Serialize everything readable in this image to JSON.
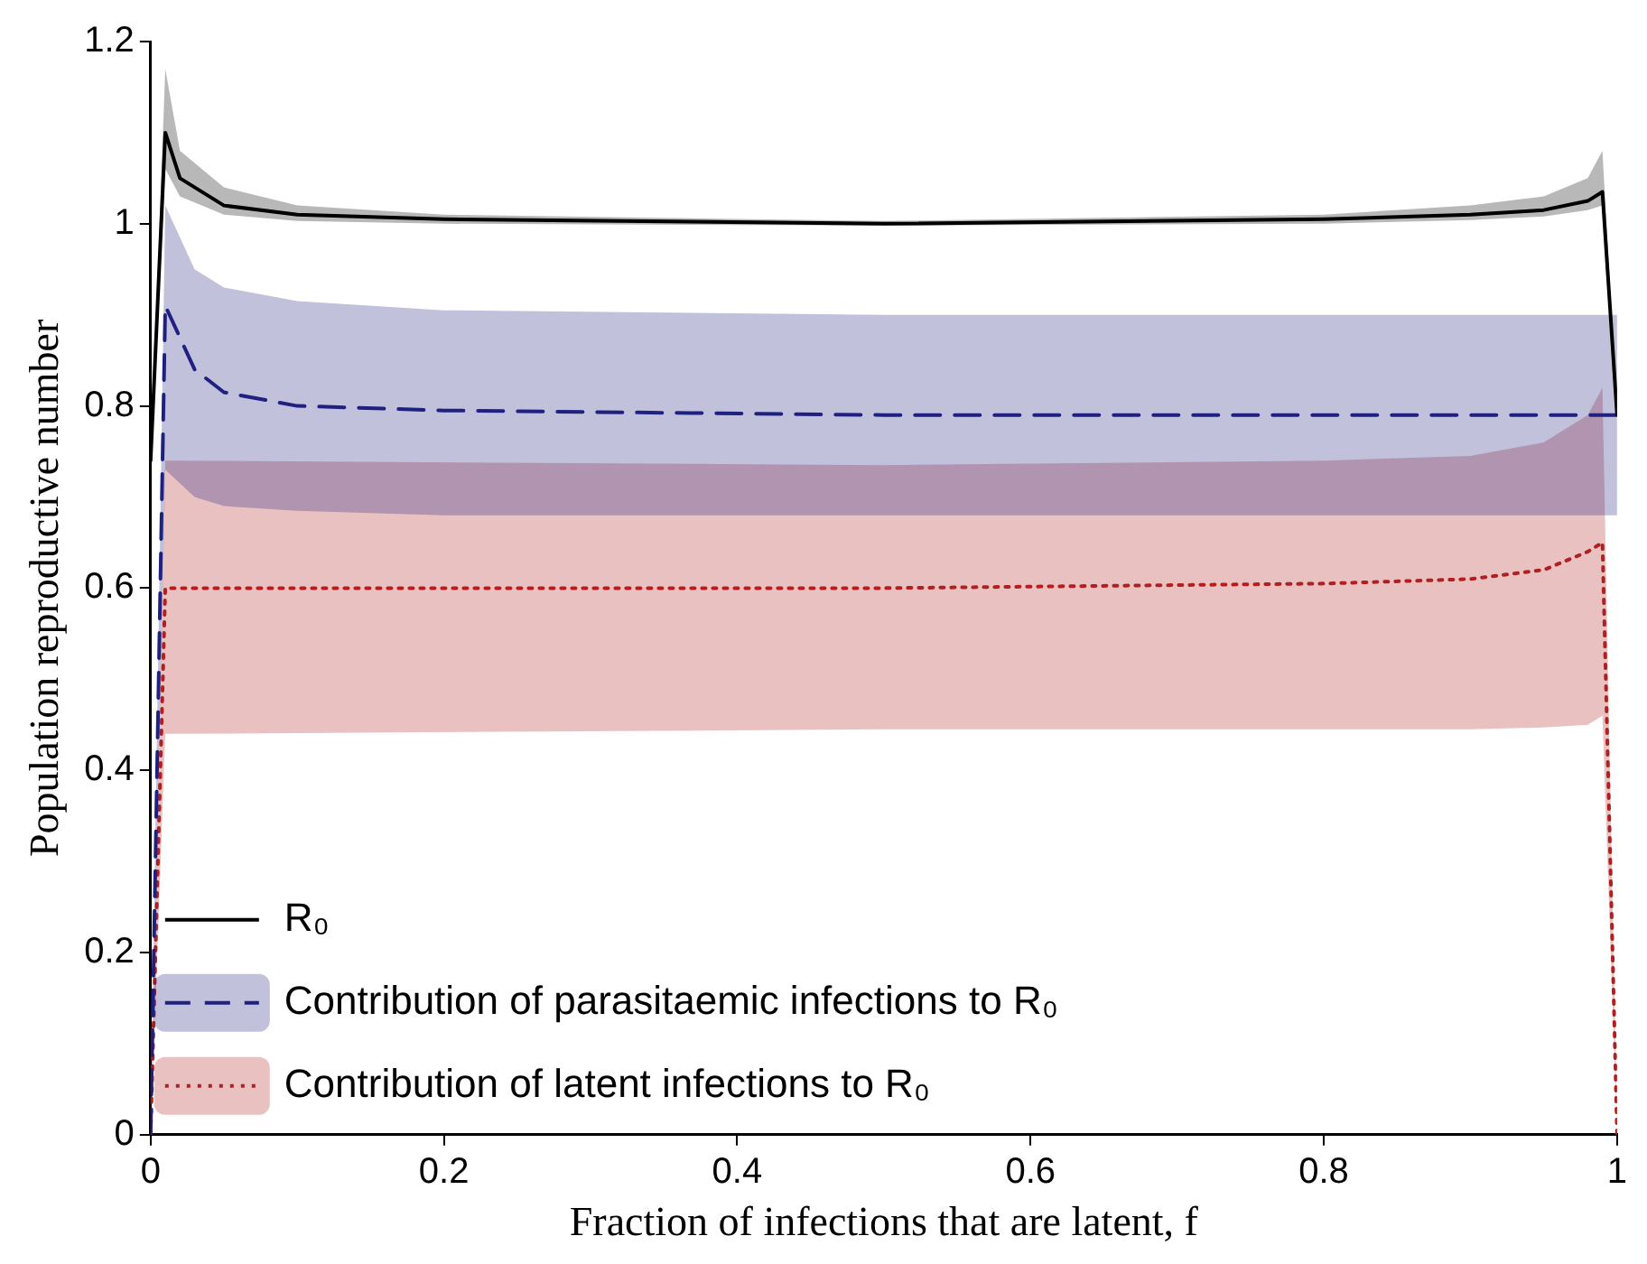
{
  "chart_data": {
    "type": "line",
    "xlabel": "Fraction of infections that are latent, f",
    "ylabel": "Population reproductive number",
    "xlim": [
      0,
      1
    ],
    "ylim": [
      0,
      1.2
    ],
    "xticks": [
      0,
      0.2,
      0.4,
      0.6,
      0.8,
      1
    ],
    "yticks": [
      0,
      0.2,
      0.4,
      0.6,
      0.8,
      1,
      1.2
    ],
    "grid": false,
    "legend": "bottom left",
    "marker": "none",
    "series": [
      {
        "name": "R₀",
        "color": "#000000",
        "line_style": "solid",
        "x": [
          0,
          0.01,
          0.02,
          0.05,
          0.1,
          0.2,
          0.5,
          0.8,
          0.9,
          0.95,
          0.98,
          0.99,
          1
        ],
        "values": [
          0.74,
          1.1,
          1.05,
          1.02,
          1.01,
          1.005,
          1,
          1.005,
          1.01,
          1.015,
          1.025,
          1.035,
          0.79
        ],
        "lower": [
          0.74,
          1.06,
          1.03,
          1.01,
          1.003,
          1,
          0.998,
          1,
          1.004,
          1.008,
          1.015,
          1.02,
          0.79
        ],
        "upper": [
          0.74,
          1.17,
          1.08,
          1.04,
          1.02,
          1.01,
          1.003,
          1.01,
          1.02,
          1.03,
          1.05,
          1.08,
          0.79
        ]
      },
      {
        "name": "Contribution of parasitaemic infections to R₀",
        "color": "#202080",
        "line_style": "dashed",
        "x": [
          0,
          0.01,
          0.03,
          0.05,
          0.1,
          0.2,
          0.5,
          1
        ],
        "values": [
          0,
          0.91,
          0.84,
          0.815,
          0.8,
          0.795,
          0.79,
          0.79
        ],
        "lower": [
          0,
          0.73,
          0.7,
          0.69,
          0.685,
          0.68,
          0.68,
          0.68
        ],
        "upper": [
          0,
          1.02,
          0.95,
          0.93,
          0.915,
          0.905,
          0.9,
          0.9
        ]
      },
      {
        "name": "Contribution of latent infections to R₀",
        "color": "#b02020",
        "line_style": "dotted",
        "x": [
          0,
          0.01,
          0.5,
          0.8,
          0.9,
          0.95,
          0.98,
          0.99,
          1
        ],
        "values": [
          0,
          0.6,
          0.6,
          0.605,
          0.61,
          0.62,
          0.64,
          0.65,
          0
        ],
        "lower": [
          0,
          0.44,
          0.445,
          0.445,
          0.445,
          0.447,
          0.45,
          0.46,
          0
        ],
        "upper": [
          0,
          0.74,
          0.735,
          0.74,
          0.745,
          0.76,
          0.79,
          0.82,
          0
        ]
      }
    ]
  }
}
